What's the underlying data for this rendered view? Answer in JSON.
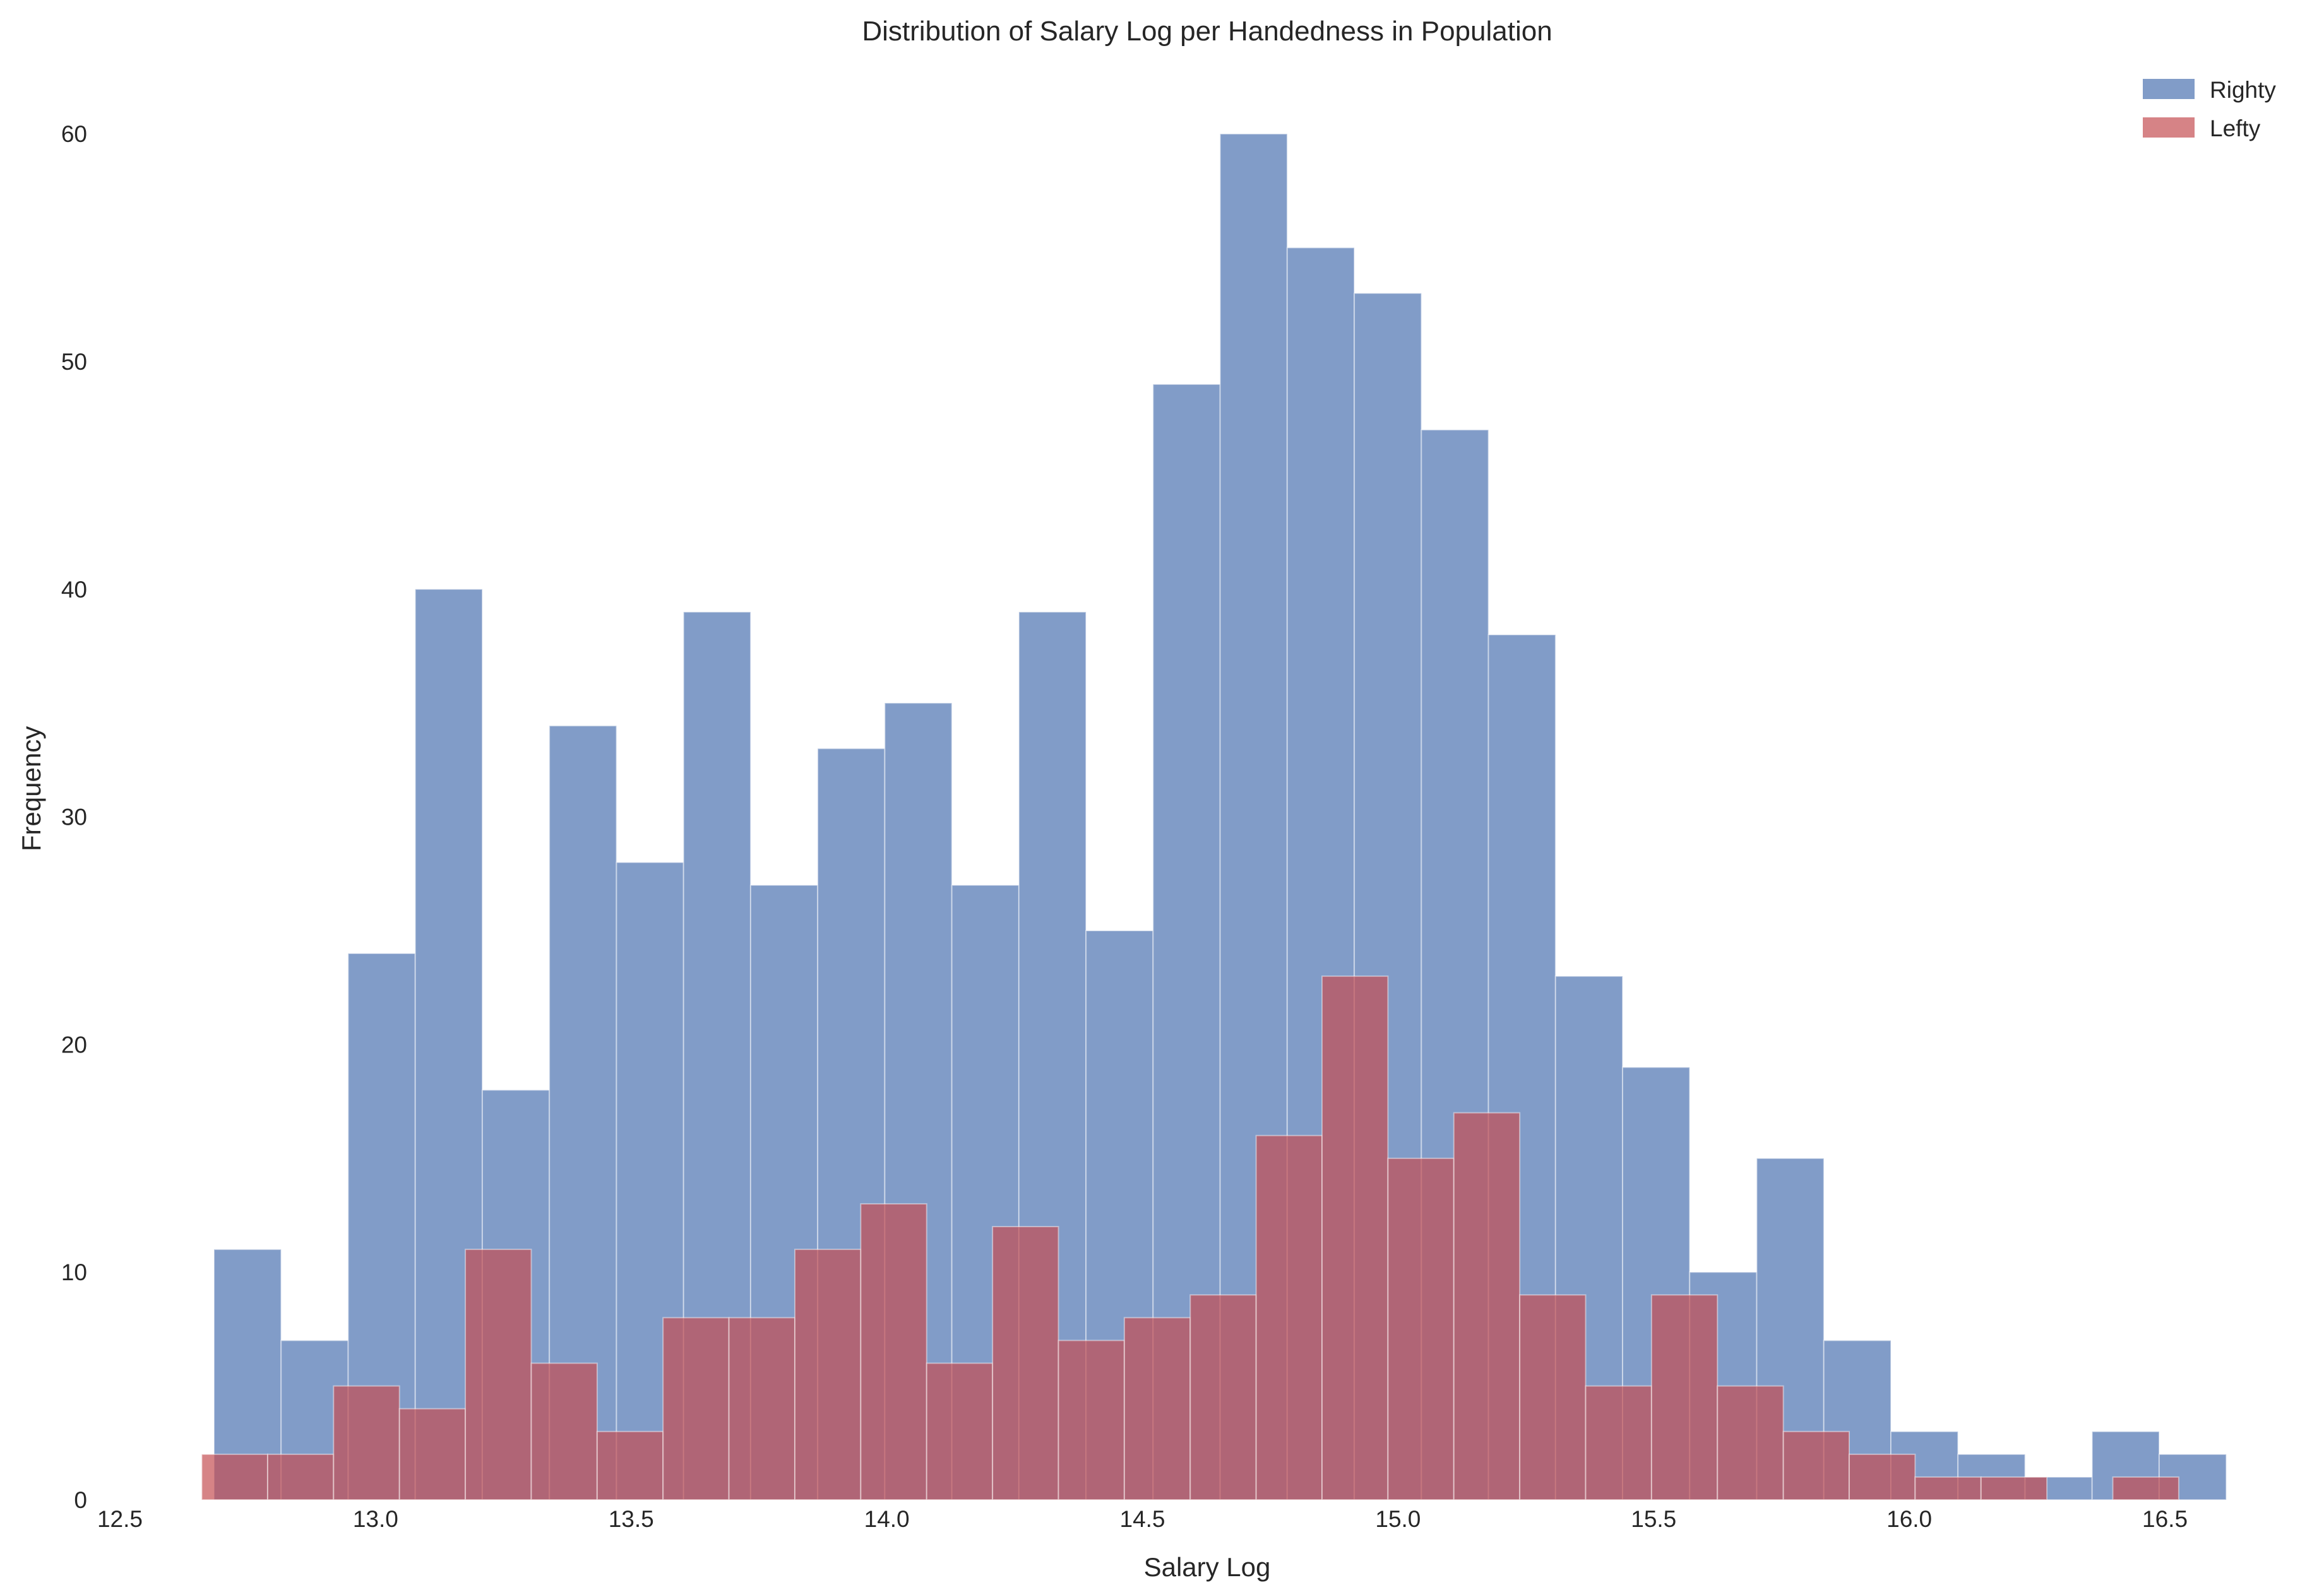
{
  "chart_data": {
    "type": "histogram",
    "title": "Distribution of Salary Log per Handedness in Population",
    "xlabel": "Salary Log",
    "ylabel": "Frequency",
    "xlim": [
      12.5,
      16.6
    ],
    "ylim": [
      0,
      62
    ],
    "xticks": [
      "12.5",
      "13.0",
      "13.5",
      "14.0",
      "14.5",
      "15.0",
      "15.5",
      "16.0",
      "16.5"
    ],
    "yticks": [
      "0",
      "10",
      "20",
      "30",
      "40",
      "50",
      "60"
    ],
    "grid": false,
    "legend_position": "top-right",
    "series": [
      {
        "name": "Righty",
        "color": "#4c72b0",
        "opacity": 0.7,
        "bin_start": 12.684,
        "bin_width": 0.1312,
        "counts": [
          11,
          7,
          24,
          40,
          18,
          34,
          28,
          39,
          27,
          33,
          35,
          27,
          39,
          25,
          49,
          60,
          55,
          53,
          47,
          38,
          23,
          19,
          10,
          15,
          7,
          3,
          2,
          1,
          3,
          2
        ]
      },
      {
        "name": "Lefty",
        "color": "#c44e52",
        "opacity": 0.7,
        "bin_start": 12.66,
        "bin_width": 0.1289,
        "counts": [
          2,
          2,
          5,
          4,
          11,
          6,
          3,
          8,
          8,
          11,
          13,
          6,
          12,
          7,
          8,
          9,
          16,
          23,
          15,
          17,
          9,
          5,
          9,
          5,
          3,
          2,
          1,
          1,
          0,
          1
        ]
      }
    ]
  }
}
